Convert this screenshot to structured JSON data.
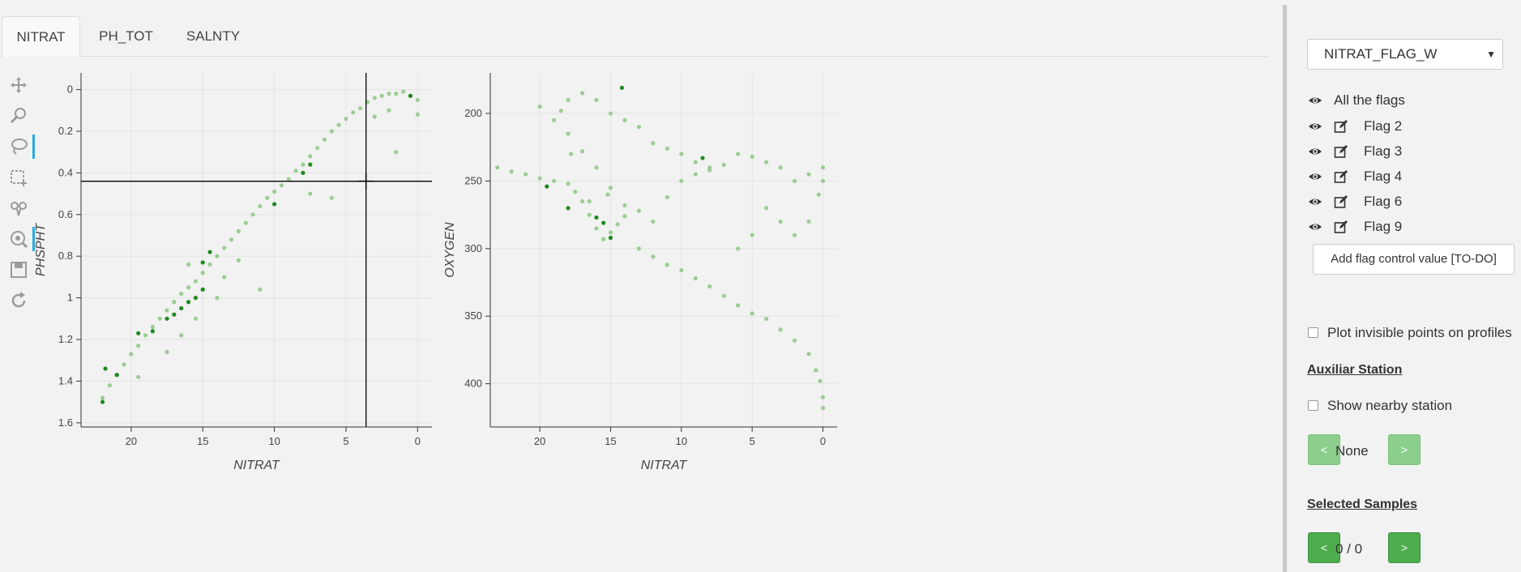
{
  "tabs": [
    {
      "label": "NITRAT",
      "active": true
    },
    {
      "label": "PH_TOT",
      "active": false
    },
    {
      "label": "SALNTY",
      "active": false
    }
  ],
  "toolbar": {
    "tools": [
      {
        "icon": "pan-icon",
        "active": false
      },
      {
        "icon": "box-zoom-icon",
        "active": false
      },
      {
        "icon": "lasso-select-icon",
        "active": true
      },
      {
        "icon": "box-select-icon",
        "active": false
      },
      {
        "icon": "tap-select-icon",
        "active": false
      },
      {
        "icon": "wheel-zoom-icon",
        "active": true
      },
      {
        "icon": "save-icon",
        "active": false
      },
      {
        "icon": "reset-icon",
        "active": false
      }
    ]
  },
  "colors": {
    "point_light": "#9ccc94",
    "point_dark": "#1f8a1f",
    "grid": "#e4e4e4",
    "crosshair": "#000000",
    "button_green": "#4cae4c",
    "button_green_faded": "#8ccf8c",
    "active_tool": "#26aae1"
  },
  "chart_data": [
    {
      "type": "scatter",
      "xlabel": "NITRAT",
      "ylabel": "PHSPHT",
      "xlim": [
        23.5,
        -1.0
      ],
      "ylim": [
        1.62,
        -0.08
      ],
      "y_inverted": true,
      "x_inverted": true,
      "grid": true,
      "xticks": [
        20,
        15,
        10,
        5,
        0
      ],
      "yticks": [
        0,
        0.2,
        0.4,
        0.6,
        0.8,
        1,
        1.2,
        1.4,
        1.6
      ],
      "crosshair": {
        "x": 3.6,
        "y": 0.44
      },
      "series": [
        {
          "color": "#9ccc94",
          "points": [
            [
              22,
              1.48
            ],
            [
              21.5,
              1.42
            ],
            [
              21,
              1.37
            ],
            [
              20.5,
              1.32
            ],
            [
              20,
              1.27
            ],
            [
              19.5,
              1.23
            ],
            [
              19,
              1.18
            ],
            [
              18.5,
              1.14
            ],
            [
              18,
              1.1
            ],
            [
              17.5,
              1.06
            ],
            [
              17,
              1.02
            ],
            [
              16.5,
              0.98
            ],
            [
              16,
              0.95
            ],
            [
              15.5,
              0.92
            ],
            [
              15,
              0.88
            ],
            [
              14.5,
              0.84
            ],
            [
              14,
              0.8
            ],
            [
              13.5,
              0.76
            ],
            [
              13,
              0.72
            ],
            [
              12.5,
              0.68
            ],
            [
              12,
              0.64
            ],
            [
              11.5,
              0.6
            ],
            [
              11,
              0.56
            ],
            [
              10.5,
              0.52
            ],
            [
              10,
              0.49
            ],
            [
              9.5,
              0.46
            ],
            [
              9,
              0.43
            ],
            [
              8.5,
              0.39
            ],
            [
              8,
              0.36
            ],
            [
              7.5,
              0.32
            ],
            [
              7,
              0.28
            ],
            [
              6.5,
              0.24
            ],
            [
              6,
              0.2
            ],
            [
              5.5,
              0.17
            ],
            [
              5,
              0.14
            ],
            [
              4.5,
              0.11
            ],
            [
              4,
              0.09
            ],
            [
              3.5,
              0.06
            ],
            [
              3,
              0.04
            ],
            [
              2.5,
              0.03
            ],
            [
              2,
              0.02
            ],
            [
              1.5,
              0.02
            ],
            [
              1,
              0.01
            ],
            [
              0.5,
              0.03
            ],
            [
              0,
              0.05
            ],
            [
              0,
              0.12
            ],
            [
              2,
              0.1
            ],
            [
              3,
              0.13
            ],
            [
              1.5,
              0.3
            ],
            [
              6,
              0.52
            ],
            [
              7.5,
              0.5
            ],
            [
              11,
              0.96
            ],
            [
              19.5,
              1.38
            ],
            [
              17.5,
              1.26
            ],
            [
              16.5,
              1.18
            ],
            [
              16,
              0.84
            ],
            [
              14,
              1.0
            ],
            [
              15.5,
              1.1
            ],
            [
              12.5,
              0.82
            ],
            [
              13.5,
              0.9
            ]
          ]
        },
        {
          "color": "#1f8a1f",
          "points": [
            [
              22,
              1.5
            ],
            [
              21.8,
              1.34
            ],
            [
              21,
              1.37
            ],
            [
              19.5,
              1.17
            ],
            [
              18.5,
              1.16
            ],
            [
              17.5,
              1.1
            ],
            [
              17,
              1.08
            ],
            [
              16.5,
              1.05
            ],
            [
              16,
              1.02
            ],
            [
              15.5,
              1.0
            ],
            [
              15,
              0.96
            ],
            [
              14.5,
              0.78
            ],
            [
              15,
              0.83
            ],
            [
              10,
              0.55
            ],
            [
              8,
              0.4
            ],
            [
              7.5,
              0.36
            ],
            [
              0.5,
              0.03
            ]
          ]
        }
      ]
    },
    {
      "type": "scatter",
      "xlabel": "NITRAT",
      "ylabel": "OXYGEN",
      "xlim": [
        23.5,
        -1.0
      ],
      "ylim": [
        432,
        170
      ],
      "y_inverted": true,
      "x_inverted": true,
      "grid": true,
      "xticks": [
        20,
        15,
        10,
        5,
        0
      ],
      "yticks": [
        200,
        250,
        300,
        350,
        400
      ],
      "series": [
        {
          "color": "#9ccc94",
          "points": [
            [
              23,
              240
            ],
            [
              22,
              243
            ],
            [
              21,
              245
            ],
            [
              20,
              248
            ],
            [
              19,
              250
            ],
            [
              18,
              252
            ],
            [
              17.5,
              258
            ],
            [
              17,
              265
            ],
            [
              16.5,
              275
            ],
            [
              16,
              285
            ],
            [
              15.5,
              293
            ],
            [
              15,
              288
            ],
            [
              14.5,
              282
            ],
            [
              14,
              276
            ],
            [
              13,
              300
            ],
            [
              12,
              306
            ],
            [
              11,
              312
            ],
            [
              10,
              316
            ],
            [
              9,
              322
            ],
            [
              8,
              328
            ],
            [
              7,
              335
            ],
            [
              6,
              342
            ],
            [
              5,
              348
            ],
            [
              4,
              352
            ],
            [
              3,
              360
            ],
            [
              2,
              368
            ],
            [
              1,
              378
            ],
            [
              0.5,
              390
            ],
            [
              0.2,
              398
            ],
            [
              0,
              410
            ],
            [
              0,
              418
            ],
            [
              0.3,
              260
            ],
            [
              0,
              250
            ],
            [
              0,
              240
            ],
            [
              1,
              245
            ],
            [
              2,
              250
            ],
            [
              3,
              240
            ],
            [
              4,
              236
            ],
            [
              5,
              232
            ],
            [
              6,
              230
            ],
            [
              7,
              238
            ],
            [
              8,
              242
            ],
            [
              9,
              236
            ],
            [
              10,
              230
            ],
            [
              11,
              226
            ],
            [
              12,
              222
            ],
            [
              13,
              210
            ],
            [
              14,
              205
            ],
            [
              15,
              200
            ],
            [
              16,
              190
            ],
            [
              17,
              185
            ],
            [
              18,
              190
            ],
            [
              18.5,
              198
            ],
            [
              19,
              205
            ],
            [
              18,
              215
            ],
            [
              17,
              228
            ],
            [
              16,
              240
            ],
            [
              15,
              255
            ],
            [
              14,
              268
            ],
            [
              13,
              272
            ],
            [
              12,
              280
            ],
            [
              11,
              262
            ],
            [
              10,
              250
            ],
            [
              9,
              245
            ],
            [
              8,
              240
            ],
            [
              6,
              300
            ],
            [
              5,
              290
            ],
            [
              4,
              270
            ],
            [
              3,
              280
            ],
            [
              2,
              290
            ],
            [
              1,
              280
            ],
            [
              20,
              195
            ],
            [
              16.5,
              265
            ],
            [
              15.2,
              260
            ],
            [
              17.8,
              230
            ]
          ]
        },
        {
          "color": "#1f8a1f",
          "points": [
            [
              14.2,
              181
            ],
            [
              19.5,
              254
            ],
            [
              18,
              270
            ],
            [
              16,
              277
            ],
            [
              15.5,
              281
            ],
            [
              15,
              292
            ],
            [
              8.5,
              233
            ]
          ]
        }
      ]
    }
  ],
  "sidebar": {
    "flag_select": "NITRAT_FLAG_W",
    "flags": [
      {
        "label": "All the flags",
        "editable": false
      },
      {
        "label": "Flag 2",
        "editable": true
      },
      {
        "label": "Flag 3",
        "editable": true
      },
      {
        "label": "Flag 4",
        "editable": true
      },
      {
        "label": "Flag 6",
        "editable": true
      },
      {
        "label": "Flag 9",
        "editable": true
      }
    ],
    "add_flag_button": "Add flag control value [TO-DO]",
    "plot_invisible_label": "Plot invisible points on profiles",
    "auxiliar_station_title": "Auxiliar Station",
    "show_nearby_label": "Show nearby station",
    "station_prev": "<",
    "station_value": "None",
    "station_next": ">",
    "selected_samples_title": "Selected Samples",
    "samples_prev": "<",
    "samples_value": "0 / 0",
    "samples_next": ">"
  }
}
